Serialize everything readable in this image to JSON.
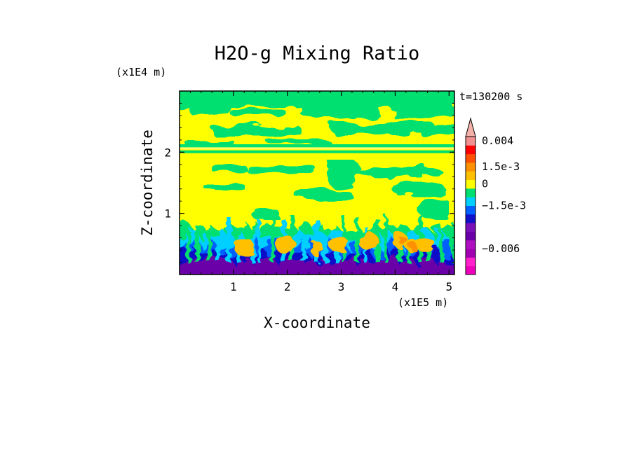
{
  "chart_data": {
    "type": "heatmap",
    "title": "H2O-g Mixing Ratio",
    "xlabel": "X-coordinate",
    "ylabel": "Z-coordinate",
    "x_scale_label": "(x1E5 m)",
    "y_scale_label": "(x1E4 m)",
    "time_label": "t=130200 s",
    "xlim": [
      0,
      5.1
    ],
    "ylim": [
      0,
      3.0
    ],
    "x_ticks": [
      {
        "value": 1,
        "label": "1"
      },
      {
        "value": 2,
        "label": "2"
      },
      {
        "value": 3,
        "label": "3"
      },
      {
        "value": 4,
        "label": "4"
      },
      {
        "value": 5,
        "label": "5"
      }
    ],
    "y_ticks": [
      {
        "value": 1,
        "label": "1"
      },
      {
        "value": 2,
        "label": "2"
      }
    ],
    "colorbar": {
      "levels": [
        {
          "color": "#ee00bb"
        },
        {
          "color": "#ff22cc"
        },
        {
          "color": "#a000b0"
        },
        {
          "color": "#b010c0"
        },
        {
          "color": "#6a00a8"
        },
        {
          "color": "#7a10b8"
        },
        {
          "color": "#1010c8"
        },
        {
          "color": "#0060ff"
        },
        {
          "color": "#00d0ff"
        },
        {
          "color": "#00e070"
        },
        {
          "color": "#ffff00"
        },
        {
          "color": "#ffc000"
        },
        {
          "color": "#ff9000"
        },
        {
          "color": "#ff5000"
        },
        {
          "color": "#ff0000"
        },
        {
          "color": "#f09090"
        }
      ],
      "extend_arrow_color": "#f2b0a8",
      "labels": [
        {
          "text": "0.004",
          "level": 15.5
        },
        {
          "text": "1.5e-3",
          "level": 12.5
        },
        {
          "text": "0",
          "level": 10.5
        },
        {
          "text": "−1.5e-3",
          "level": 8
        },
        {
          "text": "−0.006",
          "level": 3
        }
      ]
    },
    "field_colors": {
      "top": "#00e070",
      "upper": "#ffff00",
      "band": "#00e070",
      "cyan": "#00d0ff",
      "blue": "#0060ff",
      "navy": "#1010c8",
      "purple": "#6a00a8",
      "orange": "#ffc000",
      "dark_orange": "#ff9000"
    }
  }
}
